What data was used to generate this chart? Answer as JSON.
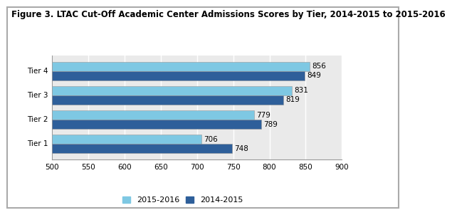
{
  "title": "Figure 3. LTAC Cut-Off Academic Center Admissions Scores by Tier, 2014-2015 to 2015-2016",
  "categories": [
    "Tier 1",
    "Tier 2",
    "Tier 3",
    "Tier 4"
  ],
  "values_2015_2016": [
    706,
    779,
    831,
    856
  ],
  "values_2014_2015": [
    748,
    789,
    819,
    849
  ],
  "color_2015_2016": "#7EC8E3",
  "color_2014_2015": "#2E5F9A",
  "xlim": [
    500,
    900
  ],
  "xticks": [
    500,
    550,
    600,
    650,
    700,
    750,
    800,
    850,
    900
  ],
  "legend_labels": [
    "2015-2016",
    "2014-2015"
  ],
  "bar_height": 0.38,
  "background_color": "#FFFFFF",
  "plot_bg_color": "#EAEAEA",
  "grid_color": "#FFFFFF",
  "title_fontsize": 8.5,
  "tick_fontsize": 7.5,
  "label_fontsize": 8,
  "value_fontsize": 7.5,
  "border_color": "#AAAAAA"
}
